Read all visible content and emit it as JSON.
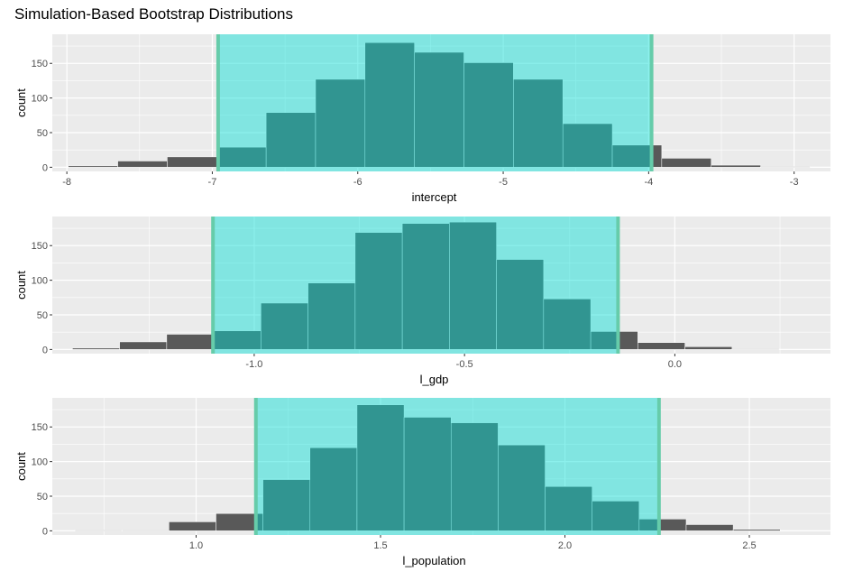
{
  "title": "Simulation-Based Bootstrap Distributions",
  "colors": {
    "panel_bg": "#ebebeb",
    "grid": "#ffffff",
    "bar_fill": "#595959",
    "bar_stroke": "#ffffff",
    "ci_shade": "#00ddd5",
    "ci_shade_opacity": 0.45,
    "ci_line": "#66ccaa"
  },
  "chart_data": [
    {
      "type": "bar",
      "subtype": "histogram",
      "xlabel": "intercept",
      "ylabel": "count",
      "xlim": [
        -8.1,
        -2.75
      ],
      "ylim": [
        -6,
        192
      ],
      "xticks": [
        -8,
        -7,
        -6,
        -5,
        -4,
        -3
      ],
      "xtick_labels": [
        "-8",
        "-7",
        "-6",
        "-5",
        "-4",
        "-3"
      ],
      "yticks": [
        0,
        50,
        100,
        150
      ],
      "ytick_labels": [
        "0",
        "50",
        "100",
        "150"
      ],
      "bin_width": 0.34,
      "bins": [
        {
          "x": -7.82,
          "count": 2
        },
        {
          "x": -7.48,
          "count": 9
        },
        {
          "x": -7.14,
          "count": 15
        },
        {
          "x": -6.8,
          "count": 29
        },
        {
          "x": -6.46,
          "count": 79
        },
        {
          "x": -6.12,
          "count": 127
        },
        {
          "x": -5.78,
          "count": 180
        },
        {
          "x": -5.44,
          "count": 166
        },
        {
          "x": -5.1,
          "count": 151
        },
        {
          "x": -4.76,
          "count": 127
        },
        {
          "x": -4.42,
          "count": 63
        },
        {
          "x": -4.08,
          "count": 32
        },
        {
          "x": -3.74,
          "count": 13
        },
        {
          "x": -3.4,
          "count": 3
        },
        {
          "x": -3.06,
          "count": 1
        }
      ],
      "ci": [
        -6.96,
        -3.98
      ]
    },
    {
      "type": "bar",
      "subtype": "histogram",
      "xlabel": "l_gdp",
      "ylabel": "count",
      "xlim": [
        -1.48,
        0.37
      ],
      "ylim": [
        -6,
        192
      ],
      "xticks": [
        -1.0,
        -0.5,
        0.0
      ],
      "xtick_labels": [
        "-1.0",
        "-0.5",
        "0.0"
      ],
      "yticks": [
        0,
        50,
        100,
        150
      ],
      "ytick_labels": [
        "0",
        "50",
        "100",
        "150"
      ],
      "bin_width": 0.112,
      "bins": [
        {
          "x": -1.376,
          "count": 2
        },
        {
          "x": -1.264,
          "count": 11
        },
        {
          "x": -1.152,
          "count": 22
        },
        {
          "x": -1.04,
          "count": 27
        },
        {
          "x": -0.928,
          "count": 67
        },
        {
          "x": -0.816,
          "count": 96
        },
        {
          "x": -0.704,
          "count": 169
        },
        {
          "x": -0.592,
          "count": 182
        },
        {
          "x": -0.48,
          "count": 184
        },
        {
          "x": -0.368,
          "count": 130
        },
        {
          "x": -0.256,
          "count": 73
        },
        {
          "x": -0.144,
          "count": 26
        },
        {
          "x": -0.032,
          "count": 10
        },
        {
          "x": 0.08,
          "count": 4
        },
        {
          "x": 0.192,
          "count": 1
        }
      ],
      "ci": [
        -1.098,
        -0.135
      ]
    },
    {
      "type": "bar",
      "subtype": "histogram",
      "xlabel": "l_population",
      "ylabel": "count",
      "xlim": [
        0.61,
        2.72
      ],
      "ylim": [
        -6,
        192
      ],
      "xticks": [
        1.0,
        1.5,
        2.0,
        2.5
      ],
      "xtick_labels": [
        "1.0",
        "1.5",
        "2.0",
        "2.5"
      ],
      "yticks": [
        0,
        50,
        100,
        150
      ],
      "ytick_labels": [
        "0",
        "50",
        "100",
        "150"
      ],
      "bin_width": 0.1275,
      "bins": [
        {
          "x": 0.735,
          "count": 1
        },
        {
          "x": 0.8625,
          "count": 1
        },
        {
          "x": 0.99,
          "count": 13
        },
        {
          "x": 1.1175,
          "count": 25
        },
        {
          "x": 1.245,
          "count": 74
        },
        {
          "x": 1.3725,
          "count": 120
        },
        {
          "x": 1.5,
          "count": 182
        },
        {
          "x": 1.6275,
          "count": 164
        },
        {
          "x": 1.755,
          "count": 156
        },
        {
          "x": 1.8825,
          "count": 124
        },
        {
          "x": 2.01,
          "count": 64
        },
        {
          "x": 2.1375,
          "count": 43
        },
        {
          "x": 2.265,
          "count": 17
        },
        {
          "x": 2.3925,
          "count": 9
        },
        {
          "x": 2.52,
          "count": 2
        }
      ],
      "ci": [
        1.162,
        2.255
      ]
    }
  ]
}
